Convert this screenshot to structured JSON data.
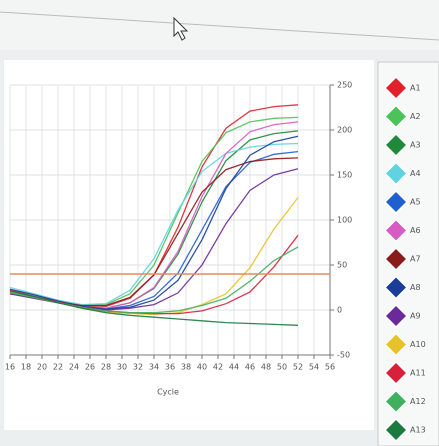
{
  "chart_data": {
    "type": "line",
    "x_label": "Cycle",
    "x": [
      16,
      19,
      22,
      25,
      28,
      31,
      34,
      37,
      40,
      43,
      46,
      49,
      52
    ],
    "xlim": [
      16,
      56
    ],
    "xticks": [
      16,
      18,
      20,
      22,
      24,
      26,
      28,
      30,
      32,
      34,
      36,
      38,
      40,
      42,
      44,
      46,
      48,
      50,
      52,
      54,
      56
    ],
    "ylim": [
      -50,
      250
    ],
    "yticks": [
      -50,
      0,
      50,
      100,
      150,
      200,
      250
    ],
    "grid": true,
    "legend": "right",
    "threshold": 40,
    "threshold_color": "#e8895a",
    "series": [
      {
        "name": "A1",
        "color": "#e0202a",
        "values": [
          20,
          15,
          10,
          5,
          4,
          13,
          39,
          92,
          159,
          202,
          221,
          226,
          228
        ]
      },
      {
        "name": "A2",
        "color": "#4cc35a",
        "values": [
          22,
          16,
          10,
          5,
          6,
          18,
          50,
          108,
          165,
          197,
          209,
          213,
          214
        ]
      },
      {
        "name": "A3",
        "color": "#1e8a3a",
        "values": [
          18,
          14,
          9,
          4,
          2,
          8,
          24,
          62,
          120,
          166,
          189,
          196,
          199
        ]
      },
      {
        "name": "A4",
        "color": "#5fd3e0",
        "values": [
          25,
          18,
          11,
          6,
          7,
          22,
          57,
          111,
          154,
          174,
          181,
          184,
          185
        ]
      },
      {
        "name": "A5",
        "color": "#1f5fd0",
        "values": [
          20,
          14,
          8,
          3,
          1,
          5,
          15,
          41,
          89,
          137,
          164,
          173,
          176
        ]
      },
      {
        "name": "A6",
        "color": "#d75bc2",
        "values": [
          21,
          15,
          9,
          4,
          2,
          8,
          25,
          65,
          126,
          174,
          198,
          206,
          209
        ]
      },
      {
        "name": "A7",
        "color": "#8b1a1a",
        "values": [
          19,
          14,
          9,
          5,
          5,
          14,
          39,
          85,
          131,
          156,
          165,
          168,
          169
        ]
      },
      {
        "name": "A8",
        "color": "#1b3d9a",
        "values": [
          23,
          17,
          10,
          4,
          1,
          3,
          11,
          33,
          78,
          135,
          172,
          187,
          193
        ]
      },
      {
        "name": "A9",
        "color": "#6a2a9a",
        "values": [
          18,
          13,
          8,
          3,
          0,
          2,
          6,
          19,
          50,
          96,
          133,
          150,
          157
        ]
      },
      {
        "name": "A10",
        "color": "#e8c22a",
        "values": [
          20,
          14,
          8,
          2,
          -2,
          -4,
          -5,
          -3,
          6,
          18,
          47,
          90,
          125
        ]
      },
      {
        "name": "A11",
        "color": "#d8203a",
        "values": [
          22,
          15,
          9,
          3,
          -1,
          -3,
          -4,
          -4,
          -1,
          7,
          20,
          48,
          83
        ]
      },
      {
        "name": "A12",
        "color": "#40b060",
        "values": [
          19,
          14,
          8,
          3,
          -1,
          -3,
          -3,
          -1,
          5,
          13,
          32,
          55,
          70
        ]
      },
      {
        "name": "A13",
        "color": "#1a7a40",
        "values": [
          21,
          15,
          8,
          2,
          -3,
          -6,
          -8,
          -10,
          -12,
          -14,
          -15,
          -16,
          -17
        ]
      }
    ]
  }
}
